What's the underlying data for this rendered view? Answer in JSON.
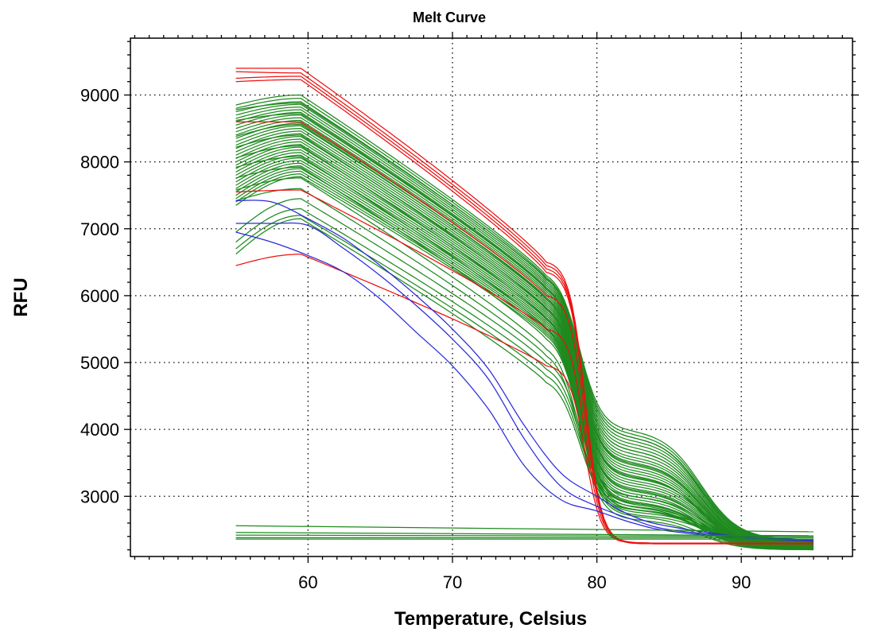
{
  "chart_data": {
    "type": "line",
    "title": "Melt Curve",
    "xlabel": "Temperature, Celsius",
    "ylabel": "RFU",
    "xlim": [
      47.7,
      97.7
    ],
    "ylim": [
      2100,
      9850
    ],
    "x_ticks": [
      60,
      70,
      80,
      90
    ],
    "y_ticks": [
      3000,
      4000,
      5000,
      6000,
      7000,
      8000,
      9000
    ],
    "x_minor_step": 1,
    "y_minor_step": 200,
    "grid": true,
    "legend": "none",
    "colors": {
      "green": "#1e8a1e",
      "red": "#ee1111",
      "blue": "#2b2bdd"
    },
    "series_groups": [
      {
        "color": "green",
        "shape": "melt",
        "start": [
          8850,
          8800,
          8750,
          8700,
          8650,
          8600,
          8550,
          8500,
          8450,
          8400,
          8350,
          8300,
          8250,
          8200,
          8150,
          8100,
          8050,
          8000,
          7950,
          7900,
          7850,
          7800,
          7750,
          7700,
          7650,
          7600,
          7550,
          7500,
          7450,
          7400,
          7350,
          8780,
          8620,
          8380,
          8220,
          8060,
          7920,
          7760,
          7580,
          7420,
          6950,
          6800,
          6700,
          6620
        ],
        "peak": [
          9000,
          8950,
          8900,
          8860,
          8820,
          8780,
          8740,
          8700,
          8660,
          8620,
          8580,
          8540,
          8500,
          8460,
          8420,
          8380,
          8340,
          8300,
          8260,
          8220,
          8180,
          8140,
          8100,
          8060,
          8020,
          7980,
          7940,
          7900,
          7860,
          7820,
          7780,
          8880,
          8720,
          8560,
          8400,
          8240,
          8080,
          7920,
          7760,
          7600,
          7450,
          7300,
          7200,
          7150
        ],
        "at77": [
          6300,
          6270,
          6240,
          6210,
          6180,
          6150,
          6120,
          6090,
          6060,
          6030,
          6000,
          5970,
          5940,
          5910,
          5880,
          5850,
          5820,
          5790,
          5760,
          5730,
          5700,
          5670,
          5640,
          5610,
          5580,
          5550,
          5520,
          5490,
          5460,
          5430,
          5400,
          6250,
          6100,
          5950,
          5800,
          5650,
          5500,
          5350,
          5200,
          5100,
          5000,
          4900,
          4800,
          4700
        ],
        "shoulder": [
          4000,
          3950,
          3900,
          3850,
          3800,
          3750,
          3700,
          3650,
          3600,
          3560,
          3520,
          3480,
          3440,
          3400,
          3360,
          3320,
          3280,
          3240,
          3200,
          3160,
          3120,
          3080,
          3040,
          3000,
          2960,
          2920,
          2880,
          2840,
          2800,
          2760,
          2720,
          3900,
          3700,
          3500,
          3300,
          3100,
          2900,
          2800,
          2700,
          2650,
          3000,
          2900,
          2850,
          2800
        ],
        "end": [
          2350,
          2340,
          2330,
          2320,
          2310,
          2300,
          2290,
          2280,
          2270,
          2260,
          2250,
          2240,
          2230,
          2220,
          2210,
          2200,
          2310,
          2300,
          2290,
          2280,
          2270,
          2260,
          2250,
          2240,
          2230,
          2220,
          2210,
          2200,
          2350,
          2340,
          2330,
          2300,
          2280,
          2260,
          2250,
          2240,
          2230,
          2220,
          2210,
          2200,
          2310,
          2300,
          2290,
          2280
        ]
      },
      {
        "color": "red",
        "shape": "melt",
        "start": [
          9400,
          9350,
          9250,
          9200,
          8600,
          7550,
          6450
        ],
        "peak": [
          9400,
          9330,
          9280,
          9230,
          8600,
          7580,
          6620
        ],
        "at77": [
          6500,
          6450,
          6400,
          6350,
          6000,
          5500,
          4950
        ],
        "shoulder": [
          2320,
          2310,
          2300,
          2290,
          2320,
          2300,
          2330
        ],
        "end": [
          2300,
          2300,
          2290,
          2290,
          2300,
          2300,
          2300
        ]
      },
      {
        "color": "blue",
        "shape": "blue_melt",
        "x": [
          [
            55,
            57.5,
            60,
            62.5,
            65,
            67.5,
            70,
            72.5,
            75,
            77.5,
            80,
            82.5,
            85,
            90,
            95
          ],
          [
            55,
            57.5,
            60,
            62.5,
            65,
            67.5,
            70,
            72.5,
            75,
            77.5,
            80,
            82.5,
            85,
            90,
            95
          ],
          [
            55,
            57.5,
            60,
            62.5,
            65,
            67.5,
            70,
            72.5,
            75,
            77.5,
            80,
            82.5,
            85,
            90,
            95
          ]
        ],
        "y": [
          [
            7420,
            7400,
            7150,
            6850,
            6450,
            6000,
            5500,
            4900,
            4050,
            3350,
            3000,
            2700,
            2550,
            2400,
            2350
          ],
          [
            7080,
            7080,
            7050,
            6700,
            6300,
            5850,
            5350,
            4750,
            3850,
            3150,
            2850,
            2650,
            2500,
            2400,
            2350
          ],
          [
            6950,
            6800,
            6600,
            6350,
            5950,
            5450,
            4950,
            4300,
            3450,
            2950,
            2780,
            2600,
            2480,
            2380,
            2330
          ]
        ]
      },
      {
        "color": "green",
        "shape": "flat",
        "start": [
          2560,
          2460,
          2420,
          2380,
          2360
        ],
        "end": [
          2470,
          2410,
          2400,
          2380,
          2360
        ]
      }
    ],
    "x_range": [
      55,
      95
    ]
  }
}
